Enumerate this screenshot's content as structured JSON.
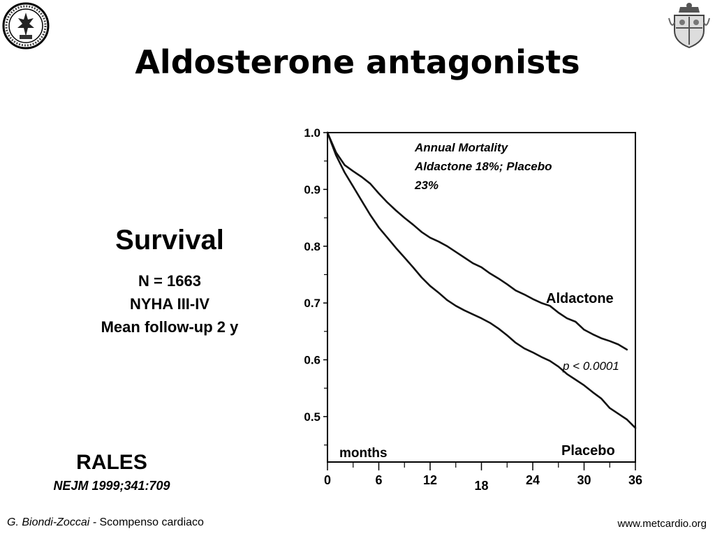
{
  "slide": {
    "title": "Aldosterone antagonists",
    "survival_heading": "Survival",
    "info_lines": [
      "N = 1663",
      "NYHA III-IV",
      "Mean follow-up 2 y"
    ],
    "trial_name": "RALES",
    "reference": "NEJM 1999;341:709",
    "footer_author": "G. Biondi-Zoccai -",
    "footer_topic": "Scompenso cardiaco",
    "footer_url": "www.metcardio.org"
  },
  "logos": {
    "left": "university-seal-icon",
    "right": "coat-of-arms-icon"
  },
  "chart_data": {
    "type": "line",
    "xlabel": "months",
    "ylabel": "",
    "xlim": [
      0,
      36
    ],
    "ylim": [
      0.42,
      1.0
    ],
    "x_ticks": [
      "0",
      "6",
      "12",
      "18",
      "24",
      "30",
      "36"
    ],
    "y_ticks": [
      "0.5",
      "0.6",
      "0.7",
      "0.8",
      "0.9",
      "1.0"
    ],
    "annotation_lines": [
      "Annual Mortality",
      "Aldactone 18%; Placebo",
      "23%"
    ],
    "p_value": "p < 0.0001",
    "series": [
      {
        "name": "Aldactone",
        "x": [
          0,
          1,
          2,
          3,
          4,
          5,
          6,
          7,
          8,
          9,
          10,
          11,
          12,
          13,
          14,
          15,
          16,
          17,
          18,
          19,
          20,
          21,
          22,
          23,
          24,
          25,
          26,
          27,
          28,
          29,
          30,
          31,
          32,
          33,
          34,
          35
        ],
        "y": [
          1.0,
          0.965,
          0.943,
          0.932,
          0.922,
          0.91,
          0.893,
          0.877,
          0.863,
          0.85,
          0.838,
          0.825,
          0.815,
          0.808,
          0.8,
          0.79,
          0.78,
          0.77,
          0.763,
          0.752,
          0.743,
          0.733,
          0.722,
          0.715,
          0.707,
          0.7,
          0.695,
          0.683,
          0.673,
          0.667,
          0.653,
          0.645,
          0.638,
          0.633,
          0.627,
          0.618
        ]
      },
      {
        "name": "Placebo",
        "x": [
          0,
          1,
          2,
          3,
          4,
          5,
          6,
          7,
          8,
          9,
          10,
          11,
          12,
          13,
          14,
          15,
          16,
          17,
          18,
          19,
          20,
          21,
          22,
          23,
          24,
          25,
          26,
          27,
          28,
          29,
          30,
          31,
          32,
          33,
          34,
          35,
          36
        ],
        "y": [
          1.0,
          0.96,
          0.93,
          0.905,
          0.88,
          0.855,
          0.833,
          0.815,
          0.797,
          0.78,
          0.763,
          0.745,
          0.73,
          0.718,
          0.705,
          0.695,
          0.687,
          0.68,
          0.673,
          0.665,
          0.655,
          0.643,
          0.63,
          0.62,
          0.613,
          0.605,
          0.598,
          0.588,
          0.575,
          0.565,
          0.555,
          0.543,
          0.532,
          0.515,
          0.505,
          0.495,
          0.48
        ]
      }
    ]
  }
}
